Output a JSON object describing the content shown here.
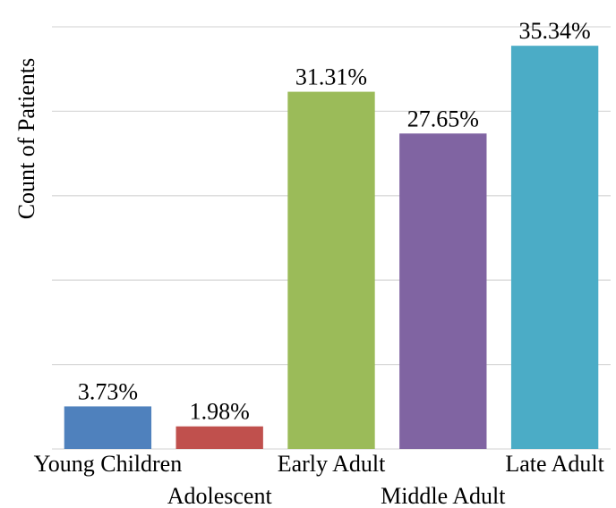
{
  "chart_data": {
    "type": "bar",
    "title": "",
    "xlabel": "",
    "ylabel": "Count of Patients",
    "categories": [
      "Young Children",
      "Adolescent",
      "Early Adult",
      "Middle Adult",
      "Late Adult"
    ],
    "values": [
      3.73,
      1.98,
      31.31,
      27.65,
      35.34
    ],
    "value_labels": [
      "3.73%",
      "1.98%",
      "31.31%",
      "27.65%",
      "35.34%"
    ],
    "colors": [
      "#4f81bd",
      "#c0504d",
      "#9bbb59",
      "#8064a2",
      "#4bacc6"
    ],
    "ylim": [
      0,
      37
    ],
    "grid": true,
    "legend": "none",
    "y_tick_labels_visible": false
  }
}
